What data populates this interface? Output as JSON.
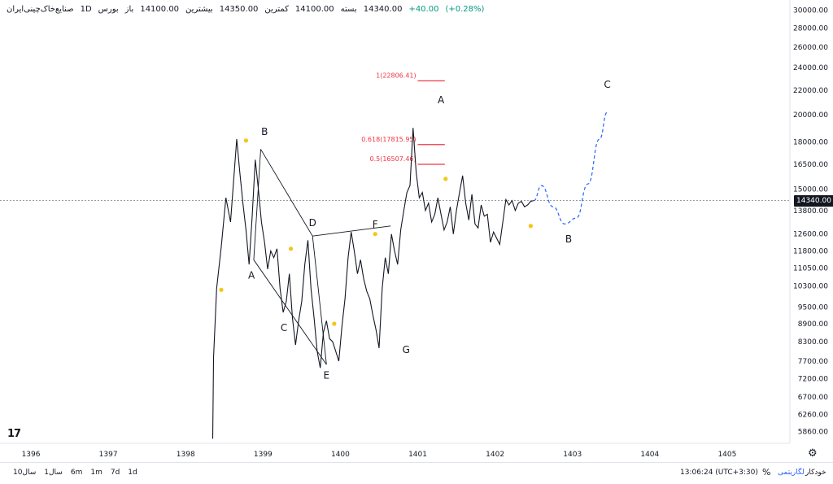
{
  "header": {
    "symbol": "صنایع‌خاک‌چینی‌ایران",
    "interval": "1D",
    "exchange": "بورس",
    "open_label": "باز",
    "open": "14100.00",
    "high_label": "بیشترین",
    "high": "14350.00",
    "low_label": "کمترین",
    "low": "14100.00",
    "close_label": "بسته",
    "close": "14340.00",
    "change": "+40.00",
    "change_pct": "(+0.28%)"
  },
  "price_axis": {
    "ticks": [
      "30000.00",
      "28000.00",
      "26000.00",
      "24000.00",
      "22000.00",
      "20000.00",
      "18000.00",
      "16500.00",
      "15000.00",
      "13800.00",
      "12600.00",
      "11800.00",
      "11050.00",
      "10300.00",
      "9500.00",
      "8900.00",
      "8300.00",
      "7700.00",
      "7200.00",
      "6700.00",
      "6260.00",
      "5860.00"
    ],
    "current_price": "14340.00"
  },
  "time_axis": {
    "ticks": [
      "1396",
      "1397",
      "1398",
      "1399",
      "1400",
      "1401",
      "1402",
      "1403",
      "1404",
      "1405"
    ]
  },
  "bottom_bar": {
    "timeframes": [
      "10سال",
      "1سال",
      "6m",
      "1m",
      "7d",
      "1d"
    ],
    "clock": "13:06:24 (UTC+3:30)",
    "percent": "%",
    "log": "لگاریتمی",
    "auto": "خودکار"
  },
  "logo": "17",
  "chart_data": {
    "type": "line",
    "scale": "log",
    "ylim": [
      5600,
      31000
    ],
    "xlim": [
      1395.6,
      1405.8
    ],
    "grid": false,
    "series": [
      {
        "values_x": [
          1398.35,
          1398.36,
          1398.4,
          1398.46,
          1398.52,
          1398.58,
          1398.62,
          1398.66,
          1398.7,
          1398.74,
          1398.78,
          1398.82,
          1398.86,
          1398.9,
          1398.94,
          1398.98,
          1399.02,
          1399.06,
          1399.1,
          1399.14,
          1399.18,
          1399.22,
          1399.26,
          1399.3,
          1399.34,
          1399.38,
          1399.42,
          1399.46,
          1399.5,
          1399.54,
          1399.58,
          1399.62,
          1399.66,
          1399.7,
          1399.74,
          1399.78,
          1399.82,
          1399.86,
          1399.9,
          1399.94,
          1399.98,
          1400.02,
          1400.06,
          1400.1,
          1400.14,
          1400.18,
          1400.22,
          1400.26,
          1400.3,
          1400.34,
          1400.38,
          1400.42,
          1400.46,
          1400.5,
          1400.54,
          1400.58,
          1400.62,
          1400.66,
          1400.7,
          1400.74,
          1400.78,
          1400.82,
          1400.86,
          1400.9,
          1400.94,
          1400.98,
          1401.02,
          1401.06,
          1401.1,
          1401.14,
          1401.18,
          1401.22,
          1401.26,
          1401.3,
          1401.34,
          1401.38,
          1401.42,
          1401.46,
          1401.5,
          1401.54,
          1401.58,
          1401.62,
          1401.66,
          1401.7,
          1401.74,
          1401.78,
          1401.82,
          1401.86,
          1401.9,
          1401.94,
          1401.98,
          1402.02,
          1402.06,
          1402.1,
          1402.14,
          1402.18,
          1402.22,
          1402.26,
          1402.3,
          1402.34,
          1402.38,
          1402.42,
          1402.46,
          1402.5
        ],
        "values_y": [
          5700,
          7800,
          10200,
          12000,
          14500,
          13200,
          15500,
          18200,
          16000,
          14200,
          12800,
          11200,
          13500,
          16800,
          15000,
          13200,
          12200,
          11000,
          11800,
          11500,
          11900,
          10200,
          9300,
          9700,
          10800,
          9100,
          8200,
          9000,
          9700,
          11200,
          12300,
          10200,
          9100,
          8000,
          7500,
          8600,
          9000,
          8400,
          8300,
          8000,
          7700,
          8800,
          9800,
          11500,
          12700,
          11800,
          10800,
          11400,
          10600,
          10100,
          9800,
          9200,
          8700,
          8100,
          10200,
          11500,
          10800,
          12600,
          11800,
          11200,
          12800,
          13800,
          14800,
          15200,
          19000,
          16000,
          14500,
          14800,
          13800,
          14200,
          13200,
          13600,
          14500,
          13600,
          12800,
          13200,
          14000,
          12600,
          13800,
          14800,
          15800,
          14200,
          13300,
          14700,
          13100,
          12900,
          14100,
          13500,
          13600,
          12200,
          12700,
          12400,
          12100,
          13200,
          14400,
          14100,
          14340,
          13800,
          14200,
          14300,
          14000,
          14100,
          14300,
          14340
        ]
      }
    ],
    "projection_x": [
      1402.5,
      1402.6,
      1402.75,
      1402.9,
      1403.05,
      1403.2,
      1403.35,
      1403.45
    ],
    "projection_y": [
      14340,
      15200,
      14000,
      13100,
      13400,
      15300,
      18200,
      20200
    ],
    "fib_levels": [
      {
        "label": "1(22806.41)",
        "value": 22806.41
      },
      {
        "label": "0.618(17815.95)",
        "value": 17815.95
      },
      {
        "label": "0.5(16507.46)",
        "value": 16507.46
      }
    ],
    "wave_labels": [
      "B",
      "A",
      "C",
      "E",
      "D",
      "F",
      "G",
      "A",
      "B",
      "C"
    ],
    "wave_points_x": [
      1399.02,
      1398.85,
      1399.27,
      1399.82,
      1399.64,
      1400.45,
      1400.85,
      1401.3,
      1402.95,
      1403.45
    ],
    "wave_points_y": [
      18500,
      10600,
      8650,
      7200,
      13000,
      12900,
      7950,
      20900,
      12200,
      22200
    ]
  }
}
